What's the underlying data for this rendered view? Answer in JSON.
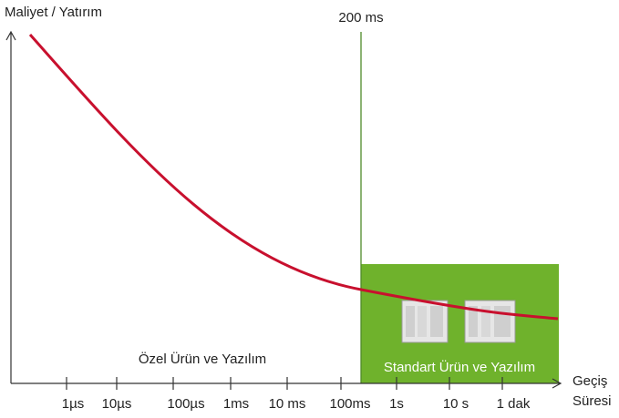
{
  "y_axis_label": "Maliyet / Yatırım",
  "x_axis_label": [
    "Geçiş",
    "Süresi"
  ],
  "x_ticks": [
    "1µs",
    "10µs",
    "100µs",
    "1ms",
    "10 ms",
    "100ms",
    "1s",
    "10 s",
    "1 dak"
  ],
  "marker_label": "200 ms",
  "regions": [
    "Özel Ürün ve Yazılım",
    "Standart Ürün ve Yazılım"
  ]
}
